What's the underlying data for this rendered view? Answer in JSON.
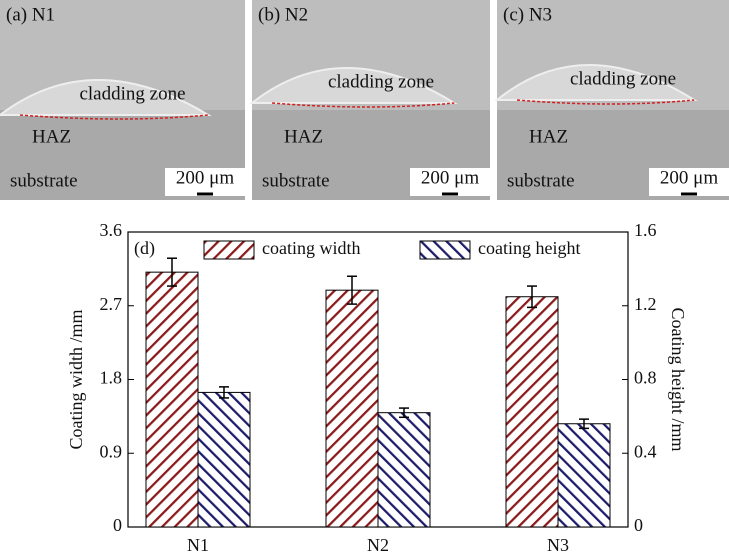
{
  "panels": [
    {
      "label": "(a) N1",
      "zone": "cladding zone",
      "haz": "HAZ",
      "substrate": "substrate",
      "scale": "200 μm"
    },
    {
      "label": "(b) N2",
      "zone": "cladding zone",
      "haz": "HAZ",
      "substrate": "substrate",
      "scale": "200 μm"
    },
    {
      "label": "(c) N3",
      "zone": "cladding zone",
      "haz": "HAZ",
      "substrate": "substrate",
      "scale": "200 μm"
    }
  ],
  "chart_data": {
    "type": "bar",
    "panel_label": "(d)",
    "categories": [
      "N1",
      "N2",
      "N3"
    ],
    "y_label": "Coating width /mm",
    "y2_label": "Coating height /mm",
    "ylim": [
      0,
      3.6
    ],
    "yticks": [
      0,
      0.9,
      1.8,
      2.7,
      3.6
    ],
    "y2lim": [
      0,
      1.6
    ],
    "y2ticks": [
      0,
      0.4,
      0.8,
      1.2,
      1.6
    ],
    "series": [
      {
        "name": "coating width",
        "color": "#8b1a1a",
        "values": [
          3.11,
          2.89,
          2.81
        ],
        "errors": [
          0.17,
          0.17,
          0.13
        ]
      },
      {
        "name": "coating height",
        "color": "#1c1c6b",
        "axis": "y2",
        "values": [
          0.73,
          0.62,
          0.56
        ],
        "errors": [
          0.03,
          0.025,
          0.025
        ]
      }
    ]
  }
}
